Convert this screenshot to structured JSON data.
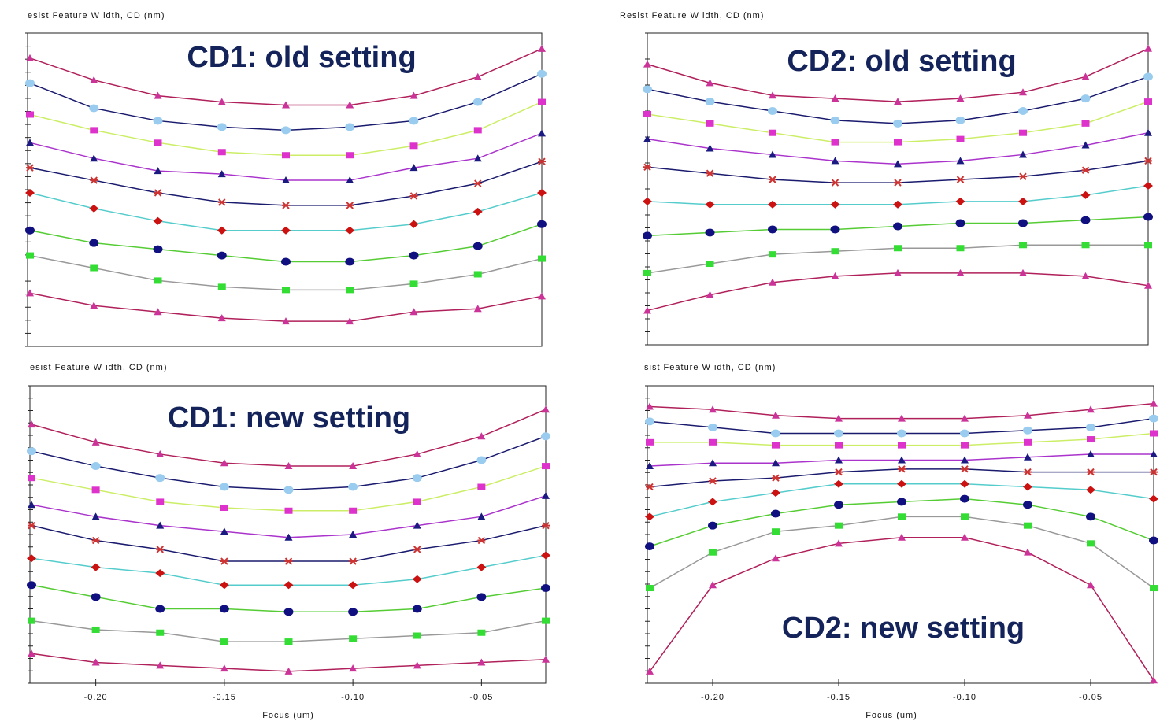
{
  "chart_data": [
    {
      "type": "line",
      "title": "CD1: old setting",
      "ylabel": "esist Feature W idth, CD (nm)",
      "x": [
        -0.225,
        -0.2,
        -0.175,
        -0.15,
        -0.125,
        -0.1,
        -0.075,
        -0.05,
        -0.025
      ],
      "xlim": [
        -0.225,
        -0.025
      ],
      "ylim": [
        0,
        100
      ],
      "series": [
        {
          "marker": "triangle",
          "color": "#cc3399",
          "line_color": "#b0205a",
          "values": [
            92,
            85,
            80,
            78,
            77,
            77,
            80,
            86,
            95
          ]
        },
        {
          "marker": "circle",
          "color": "#99ccee",
          "line_color": "#1a1a6e",
          "values": [
            84,
            76,
            72,
            70,
            69,
            70,
            72,
            78,
            87
          ]
        },
        {
          "marker": "square",
          "color": "#dd33cc",
          "line_color": "#ccee66",
          "values": [
            74,
            69,
            65,
            62,
            61,
            61,
            64,
            69,
            78
          ]
        },
        {
          "marker": "triangle",
          "color": "#1a1a80",
          "line_color": "#aa33cc",
          "values": [
            65,
            60,
            56,
            55,
            53,
            53,
            57,
            60,
            68
          ]
        },
        {
          "marker": "star",
          "color": "#cc3333",
          "line_color": "#1a1a6e",
          "values": [
            57,
            53,
            49,
            46,
            45,
            45,
            48,
            52,
            59
          ]
        },
        {
          "marker": "diamond",
          "color": "#cc1111",
          "line_color": "#55cccc",
          "values": [
            49,
            44,
            40,
            37,
            37,
            37,
            39,
            43,
            49
          ]
        },
        {
          "marker": "circle",
          "color": "#101080",
          "line_color": "#55cc33",
          "values": [
            37,
            33,
            31,
            29,
            27,
            27,
            29,
            32,
            39
          ]
        },
        {
          "marker": "square",
          "color": "#33dd33",
          "line_color": "#999999",
          "values": [
            29,
            25,
            21,
            19,
            18,
            18,
            20,
            23,
            28
          ]
        },
        {
          "marker": "triangle",
          "color": "#cc3399",
          "line_color": "#b0205a",
          "values": [
            17,
            13,
            11,
            9,
            8,
            8,
            11,
            12,
            16
          ]
        }
      ]
    },
    {
      "type": "line",
      "title": "CD2: old setting",
      "ylabel": "Resist Feature W idth, CD (nm)",
      "x": [
        -0.225,
        -0.2,
        -0.175,
        -0.15,
        -0.125,
        -0.1,
        -0.075,
        -0.05,
        -0.025
      ],
      "xlim": [
        -0.225,
        -0.025
      ],
      "ylim": [
        0,
        100
      ],
      "series": [
        {
          "marker": "triangle",
          "color": "#cc3399",
          "line_color": "#b0205a",
          "values": [
            90,
            84,
            80,
            79,
            78,
            79,
            81,
            86,
            95
          ]
        },
        {
          "marker": "circle",
          "color": "#99ccee",
          "line_color": "#1a1a6e",
          "values": [
            82,
            78,
            75,
            72,
            71,
            72,
            75,
            79,
            86
          ]
        },
        {
          "marker": "square",
          "color": "#dd33cc",
          "line_color": "#ccee66",
          "values": [
            74,
            71,
            68,
            65,
            65,
            66,
            68,
            71,
            78
          ]
        },
        {
          "marker": "triangle",
          "color": "#1a1a80",
          "line_color": "#aa33cc",
          "values": [
            66,
            63,
            61,
            59,
            58,
            59,
            61,
            64,
            68
          ]
        },
        {
          "marker": "star",
          "color": "#cc3333",
          "line_color": "#1a1a6e",
          "values": [
            57,
            55,
            53,
            52,
            52,
            53,
            54,
            56,
            59
          ]
        },
        {
          "marker": "diamond",
          "color": "#cc1111",
          "line_color": "#55cccc",
          "values": [
            46,
            45,
            45,
            45,
            45,
            46,
            46,
            48,
            51
          ]
        },
        {
          "marker": "circle",
          "color": "#101080",
          "line_color": "#55cc33",
          "values": [
            35,
            36,
            37,
            37,
            38,
            39,
            39,
            40,
            41
          ]
        },
        {
          "marker": "square",
          "color": "#33dd33",
          "line_color": "#999999",
          "values": [
            23,
            26,
            29,
            30,
            31,
            31,
            32,
            32,
            32
          ]
        },
        {
          "marker": "triangle",
          "color": "#cc3399",
          "line_color": "#b0205a",
          "values": [
            11,
            16,
            20,
            22,
            23,
            23,
            23,
            22,
            19
          ]
        }
      ]
    },
    {
      "type": "line",
      "title": "CD1: new setting",
      "ylabel": "esist Feature W idth, CD (nm)",
      "xlabel": "Focus (um)",
      "x": [
        -0.225,
        -0.2,
        -0.175,
        -0.15,
        -0.125,
        -0.1,
        -0.075,
        -0.05,
        -0.025
      ],
      "xlim": [
        -0.225,
        -0.025
      ],
      "ylim": [
        0,
        100
      ],
      "xticks": [
        {
          "value": -0.2,
          "label": "-0.20"
        },
        {
          "value": -0.15,
          "label": "-0.15"
        },
        {
          "value": -0.1,
          "label": "-0.10"
        },
        {
          "value": -0.05,
          "label": "-0.05"
        }
      ],
      "series": [
        {
          "marker": "triangle",
          "color": "#cc3399",
          "line_color": "#b0205a",
          "values": [
            87,
            81,
            77,
            74,
            73,
            73,
            77,
            83,
            92
          ]
        },
        {
          "marker": "circle",
          "color": "#99ccee",
          "line_color": "#1a1a6e",
          "values": [
            78,
            73,
            69,
            66,
            65,
            66,
            69,
            75,
            83
          ]
        },
        {
          "marker": "square",
          "color": "#dd33cc",
          "line_color": "#ccee66",
          "values": [
            69,
            65,
            61,
            59,
            58,
            58,
            61,
            66,
            73
          ]
        },
        {
          "marker": "triangle",
          "color": "#1a1a80",
          "line_color": "#aa33cc",
          "values": [
            60,
            56,
            53,
            51,
            49,
            50,
            53,
            56,
            63
          ]
        },
        {
          "marker": "star",
          "color": "#cc3333",
          "line_color": "#1a1a6e",
          "values": [
            53,
            48,
            45,
            41,
            41,
            41,
            45,
            48,
            53
          ]
        },
        {
          "marker": "diamond",
          "color": "#cc1111",
          "line_color": "#55cccc",
          "values": [
            42,
            39,
            37,
            33,
            33,
            33,
            35,
            39,
            43
          ]
        },
        {
          "marker": "circle",
          "color": "#101080",
          "line_color": "#55cc33",
          "values": [
            33,
            29,
            25,
            25,
            24,
            24,
            25,
            29,
            32
          ]
        },
        {
          "marker": "square",
          "color": "#33dd33",
          "line_color": "#999999",
          "values": [
            21,
            18,
            17,
            14,
            14,
            15,
            16,
            17,
            21
          ]
        },
        {
          "marker": "triangle",
          "color": "#cc3399",
          "line_color": "#b0205a",
          "values": [
            10,
            7,
            6,
            5,
            4,
            5,
            6,
            7,
            8
          ]
        }
      ]
    },
    {
      "type": "line",
      "title": "CD2: new setting",
      "ylabel": "sist Feature W idth, CD (nm)",
      "xlabel": "Focus (um)",
      "x": [
        -0.225,
        -0.2,
        -0.175,
        -0.15,
        -0.125,
        -0.1,
        -0.075,
        -0.05,
        -0.025
      ],
      "xlim": [
        -0.225,
        -0.025
      ],
      "ylim": [
        0,
        100
      ],
      "xticks": [
        {
          "value": -0.2,
          "label": "-0.20"
        },
        {
          "value": -0.15,
          "label": "-0.15"
        },
        {
          "value": -0.1,
          "label": "-0.10"
        },
        {
          "value": -0.05,
          "label": "-0.05"
        }
      ],
      "series": [
        {
          "marker": "triangle",
          "color": "#cc3399",
          "line_color": "#b0205a",
          "values": [
            93,
            92,
            90,
            89,
            89,
            89,
            90,
            92,
            94
          ]
        },
        {
          "marker": "circle",
          "color": "#99ccee",
          "line_color": "#1a1a6e",
          "values": [
            88,
            86,
            84,
            84,
            84,
            84,
            85,
            86,
            89
          ]
        },
        {
          "marker": "square",
          "color": "#dd33cc",
          "line_color": "#ccee66",
          "values": [
            81,
            81,
            80,
            80,
            80,
            80,
            81,
            82,
            84
          ]
        },
        {
          "marker": "triangle",
          "color": "#1a1a80",
          "line_color": "#aa33cc",
          "values": [
            73,
            74,
            74,
            75,
            75,
            75,
            76,
            77,
            77
          ]
        },
        {
          "marker": "star",
          "color": "#cc3333",
          "line_color": "#1a1a6e",
          "values": [
            66,
            68,
            69,
            71,
            72,
            72,
            71,
            71,
            71
          ]
        },
        {
          "marker": "diamond",
          "color": "#cc1111",
          "line_color": "#55cccc",
          "values": [
            56,
            61,
            64,
            67,
            67,
            67,
            66,
            65,
            62
          ]
        },
        {
          "marker": "circle",
          "color": "#101080",
          "line_color": "#55cc33",
          "values": [
            46,
            53,
            57,
            60,
            61,
            62,
            60,
            56,
            48
          ]
        },
        {
          "marker": "square",
          "color": "#33dd33",
          "line_color": "#999999",
          "values": [
            32,
            44,
            51,
            53,
            56,
            56,
            53,
            47,
            32
          ]
        },
        {
          "marker": "triangle",
          "color": "#cc3399",
          "line_color": "#b0205a",
          "values": [
            4,
            33,
            42,
            47,
            49,
            49,
            44,
            33,
            1
          ]
        }
      ]
    }
  ]
}
